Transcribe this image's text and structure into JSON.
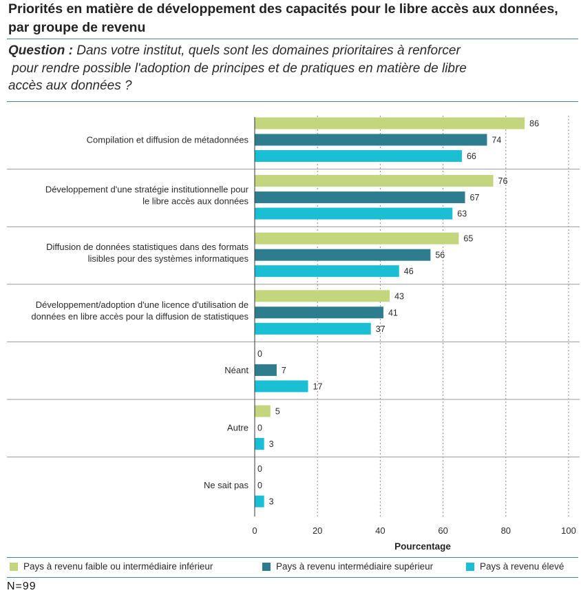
{
  "title": "Priorités en matière de développement des capacités pour le libre accès aux données, par groupe de revenu",
  "question": {
    "label": "Question :",
    "text": " Dans votre institut, quels sont les domaines prioritaires à renforcer\n pour rendre possible l'adoption de principes et de pratiques en matière de libre\naccès aux données ?"
  },
  "footer": {
    "n_label": "N=99"
  },
  "colors": {
    "low": "#c3d67e",
    "upper_middle": "#2e7d8f",
    "high": "#1bbfd4",
    "rule": "#4a7fa0",
    "grid": "#888888"
  },
  "chart_data": {
    "type": "bar",
    "orientation": "horizontal",
    "title": "Priorités en matière de développement des capacités pour le libre accès aux données, par groupe de revenu",
    "xlabel": "Pourcentage",
    "ylabel": "",
    "xlim": [
      0,
      100
    ],
    "xticks": [
      0,
      20,
      40,
      60,
      80,
      100
    ],
    "grid": "vertical dotted",
    "legend_position": "bottom",
    "categories": [
      [
        "Compilation et diffusion de métadonnées"
      ],
      [
        "Développement d'une stratégie institutionnelle pour",
        "le libre accès aux données"
      ],
      [
        "Diffusion de données statistiques dans des formats",
        "lisibles pour des systèmes informatiques"
      ],
      [
        "Développement/adoption d'une licence d'utilisation de",
        "données en libre accès pour la diffusion de statistiques"
      ],
      [
        "Néant"
      ],
      [
        "Autre"
      ],
      [
        "Ne sait pas"
      ]
    ],
    "series": [
      {
        "name": "Pays à revenu faible ou intermédiaire inférieur",
        "color": "#c3d67e",
        "values": [
          86,
          76,
          65,
          43,
          0,
          5,
          0
        ]
      },
      {
        "name": "Pays à revenu intermédiaire supérieur",
        "color": "#2e7d8f",
        "values": [
          74,
          67,
          56,
          41,
          7,
          0,
          0
        ]
      },
      {
        "name": "Pays à revenu élevé",
        "color": "#1bbfd4",
        "values": [
          66,
          63,
          46,
          37,
          17,
          3,
          3
        ]
      }
    ]
  }
}
